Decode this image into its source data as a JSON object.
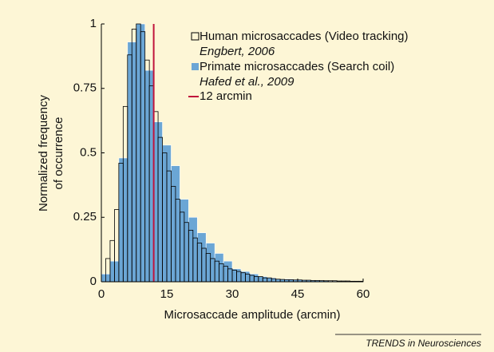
{
  "chart_data": {
    "type": "histogram",
    "xlabel": "Microsaccade amplitude (arcmin)",
    "ylabel": [
      "Normalized frequency",
      "of occurrence"
    ],
    "xlim": [
      0,
      60
    ],
    "xticks": [
      0,
      15,
      30,
      45,
      60
    ],
    "ylim": [
      0,
      1
    ],
    "yticks": [
      0,
      0.25,
      0.5,
      0.75,
      1
    ],
    "series": [
      {
        "name": "Primate microsaccades (Search coil)",
        "note": "Hafed et al., 2009",
        "color": "#6ba6d5",
        "bins": [
          0,
          2,
          4,
          6,
          8,
          10,
          12,
          14,
          16,
          18,
          20,
          22,
          24,
          26,
          28,
          30,
          32,
          34,
          36,
          38,
          40,
          42,
          44,
          46,
          48,
          50,
          52,
          54,
          56,
          58,
          60
        ],
        "values": [
          0.03,
          0.08,
          0.48,
          0.93,
          1,
          0.82,
          0.62,
          0.53,
          0.45,
          0.32,
          0.25,
          0.19,
          0.15,
          0.11,
          0.08,
          0.05,
          0.04,
          0.03,
          0.02,
          0.015,
          0.01,
          0.01,
          0.008,
          0.006,
          0.005,
          0.004,
          0.003,
          0.003,
          0.002,
          0.002
        ]
      },
      {
        "name": "Human microsaccades (Video tracking)",
        "note": "Engbert, 2006",
        "color": "#000000",
        "bins": [
          0,
          1,
          2,
          3,
          4,
          5,
          6,
          7,
          8,
          9,
          10,
          11,
          12,
          13,
          14,
          15,
          16,
          17,
          18,
          19,
          20,
          21,
          22,
          23,
          24,
          25,
          26,
          27,
          28,
          29,
          30,
          31,
          32,
          33,
          34,
          35,
          36,
          37,
          38,
          39,
          40,
          41,
          42,
          43,
          44,
          45,
          46,
          47,
          48,
          49,
          50,
          51,
          52,
          53,
          54,
          55,
          56,
          57,
          58,
          59,
          60
        ],
        "values": [
          0,
          0.09,
          0.16,
          0.28,
          0.46,
          0.68,
          0.88,
          0.98,
          1,
          0.97,
          0.86,
          0.76,
          0.66,
          0.56,
          0.5,
          0.43,
          0.37,
          0.32,
          0.27,
          0.23,
          0.2,
          0.17,
          0.15,
          0.13,
          0.11,
          0.09,
          0.08,
          0.07,
          0.06,
          0.05,
          0.045,
          0.04,
          0.035,
          0.03,
          0.025,
          0.02,
          0.02,
          0.015,
          0.015,
          0.012,
          0.01,
          0.009,
          0.008,
          0.008,
          0.007,
          0.007,
          0.006,
          0.006,
          0.005,
          0.005,
          0.005,
          0.004,
          0.004,
          0.004,
          0.003,
          0.003,
          0.003,
          0.002,
          0.002,
          0.002
        ]
      }
    ],
    "reference_line": {
      "name": "12 arcmin",
      "value": 12,
      "color": "#c0143c"
    },
    "footer": "TRENDS in Neurosciences"
  }
}
